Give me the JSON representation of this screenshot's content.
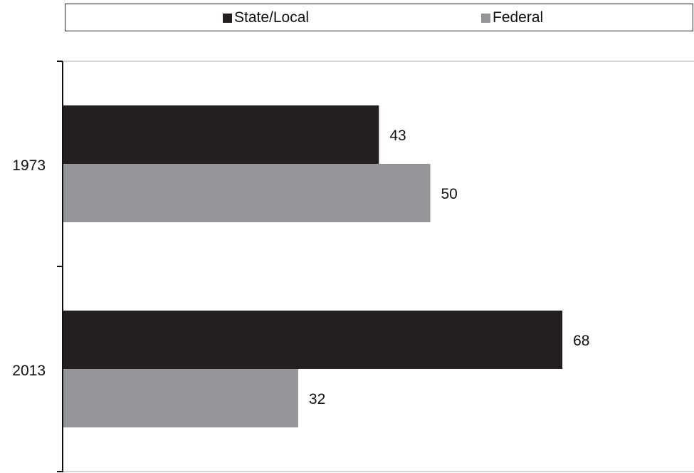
{
  "chart_data": {
    "type": "bar",
    "orientation": "horizontal",
    "categories": [
      "1973",
      "2013"
    ],
    "series": [
      {
        "name": "State/Local",
        "values": [
          43,
          68
        ],
        "color": "#231f20"
      },
      {
        "name": "Federal",
        "values": [
          50,
          32
        ],
        "color": "#939598"
      }
    ],
    "xlim": [
      0,
      100
    ],
    "title": "",
    "xlabel": "",
    "ylabel": "",
    "legend_position": "top",
    "grid": false,
    "data_labels": true
  }
}
